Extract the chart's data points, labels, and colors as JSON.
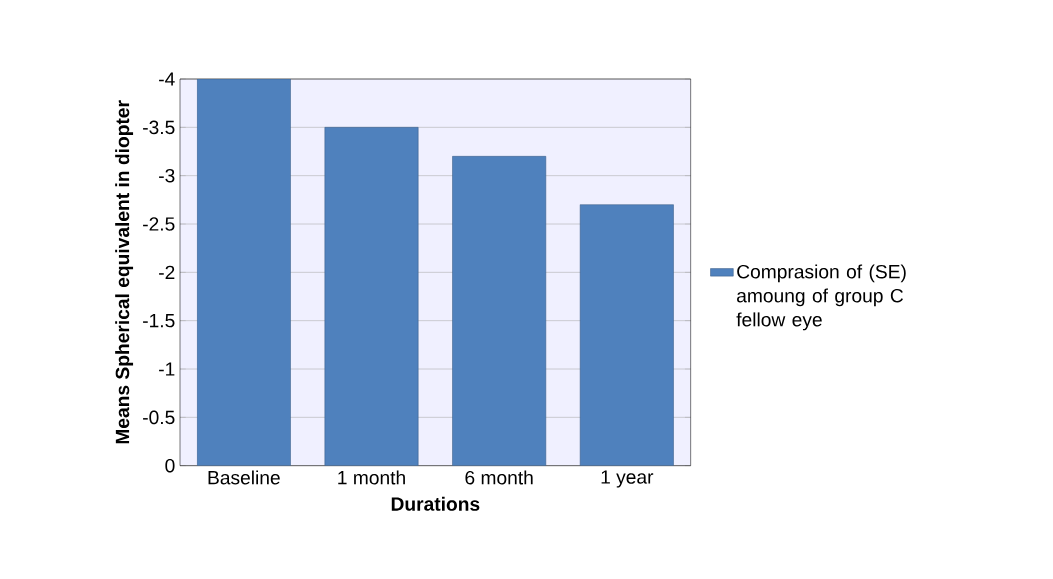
{
  "chart_data": {
    "type": "bar",
    "xlabel": "Durations",
    "ylabel": "Means Spherical equivalent in diopter",
    "categories": [
      "Baseline",
      "1 month",
      "6 month",
      "1 year"
    ],
    "series": [
      {
        "name": "Comprasion of (SE) amoung of group C fellow eye",
        "color": "#4f81bd",
        "values": [
          -4.0,
          -3.5,
          -3.2,
          -2.7
        ]
      }
    ],
    "ylim": [
      0,
      -4
    ],
    "yticks": [
      0,
      -0.5,
      -1,
      -1.5,
      -2,
      -2.5,
      -3,
      -3.5,
      -4
    ],
    "grid": "y",
    "legend": "right"
  }
}
